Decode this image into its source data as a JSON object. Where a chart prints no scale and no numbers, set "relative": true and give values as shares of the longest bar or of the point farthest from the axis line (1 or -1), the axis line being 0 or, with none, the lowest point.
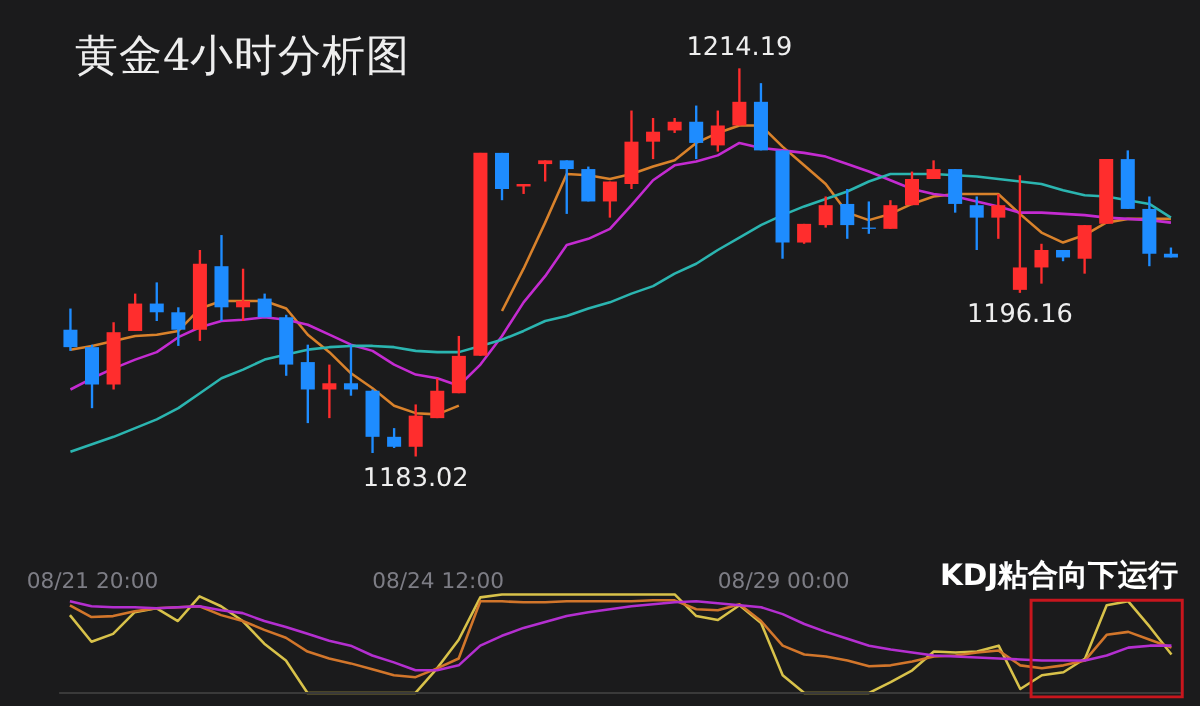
{
  "chart_data": [
    {
      "type": "candlestick",
      "title": "黄金4小时分析图",
      "categories": [
        null,
        null,
        null,
        null,
        null,
        null,
        null,
        null,
        null,
        null,
        null,
        null,
        null,
        null,
        null,
        null,
        null,
        null,
        null,
        null,
        null,
        null,
        null,
        null,
        null,
        null,
        null,
        null,
        null,
        null,
        null,
        null,
        null,
        null,
        null,
        null,
        null,
        null,
        null,
        null,
        null,
        null,
        null,
        null,
        null,
        null,
        null,
        null,
        null,
        null,
        null,
        null
      ],
      "ohlc": [
        [
          1193.2,
          1194.9,
          1191.5,
          1191.8
        ],
        [
          1191.8,
          1192.0,
          1186.9,
          1188.8
        ],
        [
          1188.8,
          1193.8,
          1188.4,
          1193.0
        ],
        [
          1193.1,
          1196.1,
          1193.1,
          1195.3
        ],
        [
          1195.3,
          1197.0,
          1193.9,
          1194.6
        ],
        [
          1194.6,
          1195.0,
          1191.9,
          1193.2
        ],
        [
          1193.2,
          1199.6,
          1192.3,
          1198.5
        ],
        [
          1198.3,
          1200.8,
          1193.9,
          1195.0
        ],
        [
          1195.0,
          1198.1,
          1193.9,
          1195.5
        ],
        [
          1195.7,
          1196.1,
          1194.2,
          1194.2
        ],
        [
          1194.2,
          1194.4,
          1189.5,
          1190.4
        ],
        [
          1190.6,
          1192.0,
          1185.7,
          1188.4
        ],
        [
          1188.4,
          1190.4,
          1186.1,
          1188.9
        ],
        [
          1188.9,
          1192.0,
          1187.9,
          1188.4
        ],
        [
          1188.3,
          1188.4,
          1183.3,
          1184.6
        ],
        [
          1184.6,
          1185.3,
          1183.7,
          1183.8
        ],
        [
          1183.8,
          1187.2,
          1183.02,
          1186.3
        ],
        [
          1186.1,
          1189.3,
          1186.1,
          1188.3
        ],
        [
          1188.1,
          1192.7,
          1188.1,
          1191.1
        ],
        [
          1191.1,
          1207.4,
          1191.1,
          1207.4
        ],
        [
          1207.4,
          1207.4,
          1203.6,
          1204.5
        ],
        [
          1204.7,
          1204.9,
          1204.1,
          1204.9
        ],
        [
          1206.5,
          1206.8,
          1205.1,
          1206.8
        ],
        [
          1206.8,
          1206.8,
          1202.5,
          1206.1
        ],
        [
          1206.1,
          1206.3,
          1203.5,
          1203.5
        ],
        [
          1203.5,
          1205.1,
          1202.2,
          1205.1
        ],
        [
          1204.9,
          1210.8,
          1204.5,
          1208.3
        ],
        [
          1208.3,
          1210.2,
          1206.9,
          1209.1
        ],
        [
          1209.2,
          1210.2,
          1209.0,
          1209.9
        ],
        [
          1209.9,
          1211.2,
          1206.9,
          1208.2
        ],
        [
          1208.0,
          1210.8,
          1207.5,
          1209.6
        ],
        [
          1209.6,
          1214.19,
          1209.6,
          1211.5
        ],
        [
          1211.5,
          1213.0,
          1207.6,
          1207.6
        ],
        [
          1207.6,
          1207.6,
          1198.9,
          1200.2
        ],
        [
          1200.2,
          1201.7,
          1200.1,
          1201.7
        ],
        [
          1201.6,
          1203.9,
          1201.4,
          1203.2
        ],
        [
          1203.3,
          1204.5,
          1200.5,
          1201.6
        ],
        [
          1201.4,
          1203.5,
          1200.9,
          1201.3
        ],
        [
          1201.3,
          1203.6,
          1201.3,
          1203.2
        ],
        [
          1203.2,
          1205.9,
          1203.2,
          1205.3
        ],
        [
          1205.3,
          1206.8,
          1205.3,
          1206.1
        ],
        [
          1206.1,
          1206.1,
          1202.6,
          1203.3
        ],
        [
          1203.2,
          1203.9,
          1199.6,
          1202.2
        ],
        [
          1202.2,
          1204.1,
          1200.5,
          1203.2
        ],
        [
          1196.4,
          1205.6,
          1196.16,
          1198.2
        ],
        [
          1198.2,
          1200.1,
          1196.9,
          1199.6
        ],
        [
          1199.6,
          1199.6,
          1198.7,
          1199.0
        ],
        [
          1198.9,
          1201.6,
          1197.7,
          1201.6
        ],
        [
          1201.7,
          1206.9,
          1201.7,
          1206.9
        ],
        [
          1206.9,
          1207.6,
          1202.9,
          1202.9
        ],
        [
          1202.9,
          1203.9,
          1198.3,
          1199.3
        ],
        [
          1199.3,
          1199.8,
          1199.0,
          1199.0
        ]
      ],
      "colors": [
        "#1e8cff",
        "#1e8cff",
        "#ff2d2d",
        "#ff2d2d",
        "#1e8cff",
        "#1e8cff",
        "#ff2d2d",
        "#1e8cff",
        "#ff2d2d",
        "#1e8cff",
        "#1e8cff",
        "#1e8cff",
        "#ff2d2d",
        "#1e8cff",
        "#1e8cff",
        "#1e8cff",
        "#ff2d2d",
        "#ff2d2d",
        "#ff2d2d",
        "#ff2d2d",
        "#1e8cff",
        "#ff2d2d",
        "#ff2d2d",
        "#1e8cff",
        "#1e8cff",
        "#ff2d2d",
        "#ff2d2d",
        "#ff2d2d",
        "#ff2d2d",
        "#1e8cff",
        "#ff2d2d",
        "#ff2d2d",
        "#1e8cff",
        "#1e8cff",
        "#ff2d2d",
        "#ff2d2d",
        "#1e8cff",
        "#1e8cff",
        "#ff2d2d",
        "#ff2d2d",
        "#ff2d2d",
        "#1e8cff",
        "#1e8cff",
        "#ff2d2d",
        "#ff2d2d",
        "#ff2d2d",
        "#1e8cff",
        "#ff2d2d",
        "#ff2d2d",
        "#1e8cff",
        "#1e8cff",
        "#1e8cff"
      ],
      "series": [
        {
          "type": "line",
          "color": "#d9822b",
          "values": [
            1191.6,
            1191.9,
            1192.3,
            1192.7,
            1192.8,
            1193.1,
            1194.9,
            1195.5,
            1195.5,
            1195.5,
            1194.9,
            1192.8,
            1191.4,
            1189.7,
            1188.5,
            1187.1,
            1186.5,
            1186.4,
            1187.1,
            null,
            1194.7,
            1198.1,
            1201.8,
            1205.7,
            1205.6,
            1205.3,
            1205.7,
            1206.3,
            1206.8,
            1208.2,
            1209.0,
            1209.6,
            1209.6,
            1207.9,
            1206.4,
            1204.9,
            1202.6,
            1202.0,
            1202.5,
            1203.3,
            1203.9,
            1204.1,
            1204.1,
            1204.1,
            1202.5,
            1201.0,
            1200.2,
            1200.8,
            1201.8,
            1202.1,
            1202.1,
            1202.1
          ]
        },
        {
          "type": "line",
          "color": "#c42bd1",
          "values": [
            1188.4,
            1189.3,
            1190.1,
            1190.8,
            1191.4,
            1192.6,
            1193.4,
            1193.9,
            1194.0,
            1194.2,
            1194.0,
            1193.6,
            1192.8,
            1192.0,
            1191.5,
            1190.4,
            1189.6,
            1189.3,
            1188.7,
            1190.4,
            1192.7,
            1195.4,
            1197.5,
            1200.0,
            1200.5,
            1201.3,
            1203.2,
            1205.2,
            1206.4,
            1206.7,
            1207.2,
            1208.2,
            1207.8,
            1207.6,
            1207.4,
            1207.1,
            1206.5,
            1205.9,
            1205.2,
            1204.5,
            1204.1,
            1203.9,
            1203.5,
            1203.1,
            1202.6,
            1202.6,
            1202.5,
            1202.4,
            1202.2,
            1202.1,
            1202.0,
            1201.8
          ]
        },
        {
          "type": "line",
          "color": "#2bb5b0",
          "values": [
            1183.4,
            1184.0,
            1184.6,
            1185.3,
            1186.0,
            1186.9,
            1188.1,
            1189.3,
            1190.0,
            1190.8,
            1191.2,
            1191.6,
            1191.8,
            1191.9,
            1191.9,
            1191.8,
            1191.5,
            1191.4,
            1191.4,
            1191.9,
            1192.4,
            1193.1,
            1193.9,
            1194.3,
            1194.9,
            1195.4,
            1196.1,
            1196.7,
            1197.7,
            1198.5,
            1199.6,
            1200.6,
            1201.6,
            1202.4,
            1203.1,
            1203.7,
            1204.3,
            1205.1,
            1205.7,
            1205.7,
            1205.7,
            1205.6,
            1205.5,
            1205.3,
            1205.1,
            1204.9,
            1204.4,
            1204.0,
            1203.9,
            1203.6,
            1203.3,
            1202.2
          ]
        }
      ],
      "annotations": [
        {
          "text": "1214.19",
          "y": 1214.19
        },
        {
          "text": "1183.02",
          "y": 1183.02
        },
        {
          "text": "1196.16",
          "y": 1196.16
        }
      ]
    },
    {
      "type": "line",
      "relative": true,
      "tick_labels": "x",
      "categories": [
        null,
        "08/21 20:00",
        null,
        null,
        null,
        null,
        null,
        null,
        null,
        null,
        null,
        null,
        null,
        null,
        null,
        null,
        null,
        "08/24 12:00",
        null,
        null,
        null,
        null,
        null,
        null,
        null,
        null,
        null,
        null,
        null,
        null,
        null,
        null,
        null,
        "08/29 00:00",
        null,
        null,
        null,
        null,
        null,
        null,
        null,
        null,
        null,
        null,
        null,
        null,
        null,
        null,
        null,
        null,
        null,
        null
      ],
      "series": [
        {
          "color": "#d8c24a",
          "values": [
            0.79,
            0.52,
            0.6,
            0.82,
            0.86,
            0.73,
            0.98,
            0.88,
            0.73,
            0.5,
            0.33,
            0,
            0,
            0,
            0,
            0,
            0,
            0.25,
            0.54,
            0.97,
            1,
            1,
            1,
            1,
            1,
            1,
            1,
            1,
            1,
            0.78,
            0.74,
            0.89,
            0.71,
            0.18,
            0,
            0,
            0,
            0,
            0.11,
            0.23,
            0.42,
            0.41,
            0.42,
            0.48,
            0.04,
            0.18,
            0.21,
            0.35,
            0.89,
            0.93,
            0.67,
            0.39
          ]
        },
        {
          "color": "#d2762b",
          "values": [
            0.89,
            0.77,
            0.78,
            0.83,
            0.86,
            0.87,
            0.88,
            0.79,
            0.73,
            0.64,
            0.56,
            0.42,
            0.35,
            0.3,
            0.24,
            0.18,
            0.16,
            0.25,
            0.35,
            0.93,
            0.93,
            0.92,
            0.92,
            0.93,
            0.93,
            0.93,
            0.93,
            0.94,
            0.94,
            0.85,
            0.84,
            0.9,
            0.73,
            0.48,
            0.39,
            0.37,
            0.33,
            0.27,
            0.28,
            0.32,
            0.37,
            0.38,
            0.41,
            0.43,
            0.28,
            0.25,
            0.28,
            0.33,
            0.59,
            0.62,
            0.54,
            0.46
          ]
        },
        {
          "color": "#b42fd0",
          "values": [
            0.93,
            0.88,
            0.87,
            0.87,
            0.86,
            0.87,
            0.88,
            0.84,
            0.81,
            0.73,
            0.67,
            0.6,
            0.53,
            0.48,
            0.38,
            0.31,
            0.23,
            0.23,
            0.28,
            0.48,
            0.58,
            0.66,
            0.72,
            0.78,
            0.82,
            0.85,
            0.88,
            0.9,
            0.92,
            0.93,
            0.91,
            0.89,
            0.87,
            0.8,
            0.7,
            0.62,
            0.55,
            0.48,
            0.44,
            0.41,
            0.38,
            0.37,
            0.36,
            0.35,
            0.34,
            0.33,
            0.33,
            0.33,
            0.38,
            0.46,
            0.48,
            0.48
          ]
        }
      ],
      "annotations": [
        "KDJ粘合向下运行"
      ]
    }
  ]
}
